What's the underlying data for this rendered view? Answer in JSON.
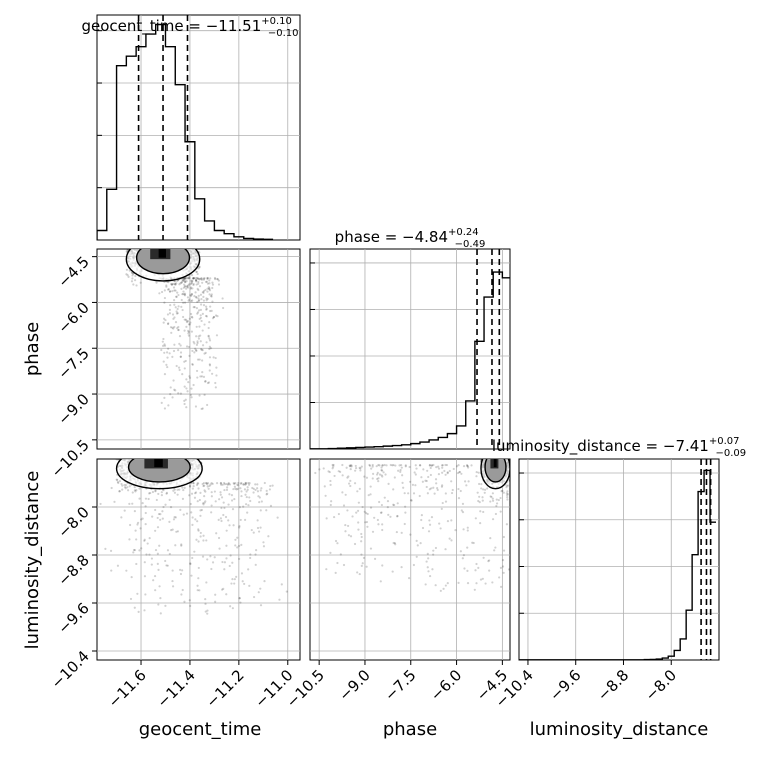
{
  "chart_data": {
    "type": "corner",
    "parameters": [
      {
        "name": "geocent_time",
        "title": {
          "main": "geocent_time = −11.51",
          "sup": "+0.10",
          "sub": "−0.10"
        },
        "range": [
          -11.78,
          -10.95
        ],
        "ticks": [
          -11.6,
          -11.4,
          -11.2,
          -11.0
        ],
        "tick_labels": [
          "−11.6",
          "−11.4",
          "−11.2",
          "−11.0"
        ],
        "quantiles": [
          -11.61,
          -11.51,
          -11.41
        ]
      },
      {
        "name": "phase",
        "title": {
          "main": "phase = −4.84",
          "sup": "+0.24",
          "sub": "−0.49"
        },
        "range": [
          -10.8,
          -4.25
        ],
        "ticks": [
          -10.5,
          -9.0,
          -7.5,
          -6.0,
          -4.5
        ],
        "tick_labels": [
          "−10.5",
          "−9.0",
          "−7.5",
          "−6.0",
          "−4.5"
        ],
        "quantiles": [
          -5.33,
          -4.84,
          -4.6
        ]
      },
      {
        "name": "luminosity_distance",
        "title": {
          "main": "luminosity_distance = −7.41",
          "sup": "+0.07",
          "sub": "−0.09"
        },
        "range": [
          -10.55,
          -7.2
        ],
        "ticks": [
          -10.4,
          -9.6,
          -8.8,
          -8.0
        ],
        "tick_labels": [
          "−10.4",
          "−9.6",
          "−8.8",
          "−8.0"
        ],
        "quantiles": [
          -7.5,
          -7.41,
          -7.34
        ]
      }
    ],
    "histograms": [
      {
        "param": "geocent_time",
        "edges": [
          -11.78,
          -11.74,
          -11.7,
          -11.66,
          -11.62,
          -11.58,
          -11.54,
          -11.5,
          -11.46,
          -11.42,
          -11.38,
          -11.34,
          -11.3,
          -11.26,
          -11.22,
          -11.18,
          -11.14,
          -11.1,
          -11.06
        ],
        "counts": [
          0.3,
          1.6,
          5.5,
          5.8,
          6.1,
          6.5,
          6.8,
          6.1,
          4.9,
          3.1,
          1.3,
          0.6,
          0.3,
          0.2,
          0.1,
          0.05,
          0.03,
          0.02
        ],
        "ymax": 7.1
      },
      {
        "param": "phase",
        "edges": [
          -10.8,
          -10.5,
          -10.2,
          -9.9,
          -9.6,
          -9.3,
          -9.0,
          -8.7,
          -8.4,
          -8.1,
          -7.8,
          -7.5,
          -7.2,
          -6.9,
          -6.6,
          -6.3,
          -6.0,
          -5.7,
          -5.4,
          -5.1,
          -4.8,
          -4.5,
          -4.25
        ],
        "counts": [
          0.01,
          0.01,
          0.02,
          0.04,
          0.06,
          0.08,
          0.1,
          0.12,
          0.15,
          0.18,
          0.22,
          0.28,
          0.36,
          0.47,
          0.6,
          0.8,
          1.2,
          2.5,
          5.6,
          7.9,
          9.2,
          8.9
        ],
        "ymax": 10.4
      },
      {
        "param": "luminosity_distance",
        "edges": [
          -10.55,
          -10.45,
          -10.35,
          -10.25,
          -10.15,
          -10.05,
          -9.95,
          -9.85,
          -9.75,
          -9.65,
          -9.55,
          -9.45,
          -9.35,
          -9.25,
          -9.15,
          -9.05,
          -8.95,
          -8.85,
          -8.75,
          -8.65,
          -8.55,
          -8.45,
          -8.35,
          -8.25,
          -8.15,
          -8.05,
          -7.95,
          -7.85,
          -7.75,
          -7.65,
          -7.55,
          -7.45,
          -7.35,
          -7.25
        ],
        "counts": [
          0.01,
          0.01,
          0.01,
          0.01,
          0.01,
          0.01,
          0.01,
          0.01,
          0.01,
          0.01,
          0.01,
          0.01,
          0.01,
          0.01,
          0.01,
          0.01,
          0.01,
          0.01,
          0.01,
          0.01,
          0.01,
          0.02,
          0.03,
          0.05,
          0.1,
          0.2,
          0.5,
          1.1,
          2.6,
          5.5,
          8.8,
          9.9,
          7.2
        ],
        "ymax": 10.5
      }
    ],
    "pairs": [
      {
        "x": "geocent_time",
        "y": "phase",
        "core_x": [
          -11.66,
          -11.36
        ],
        "core_y": [
          -5.2,
          -4.25
        ],
        "tail_x": [
          -11.5,
          -11.3
        ],
        "tail_y": [
          -9.5,
          -5.2
        ]
      },
      {
        "x": "geocent_time",
        "y": "luminosity_distance",
        "core_x": [
          -11.7,
          -11.35
        ],
        "core_y": [
          -7.65,
          -7.2
        ],
        "tail_x": [
          -11.65,
          -11.1
        ],
        "tail_y": [
          -9.8,
          -7.6
        ]
      },
      {
        "x": "phase",
        "y": "luminosity_distance",
        "core_x": [
          -5.2,
          -4.25
        ],
        "core_y": [
          -7.65,
          -7.2
        ],
        "tail_x": [
          -10.0,
          -4.3
        ],
        "tail_y": [
          -9.4,
          -7.3
        ]
      }
    ],
    "grid": true,
    "legend": "none"
  }
}
